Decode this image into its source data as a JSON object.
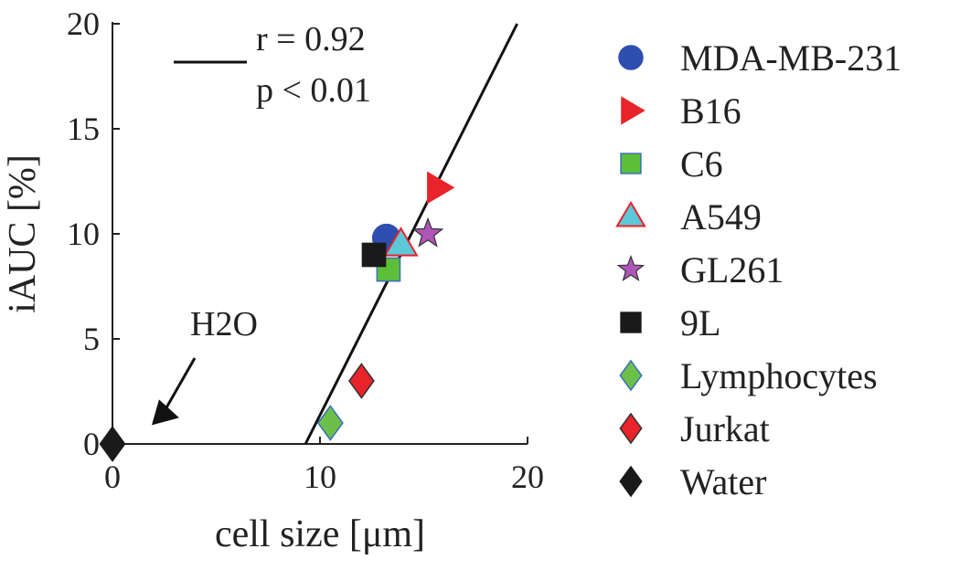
{
  "chart_data": {
    "type": "scatter",
    "xlabel": "cell size [μm]",
    "ylabel": "iAUC [%]",
    "xlim": [
      0,
      20
    ],
    "ylim": [
      0,
      20
    ],
    "x_ticks": [
      "0",
      "10",
      "20"
    ],
    "y_ticks": [
      "0",
      "5",
      "10",
      "15",
      "20"
    ],
    "grid": false,
    "legend_position": "right",
    "series": [
      {
        "name": "MDA-MB-231",
        "marker": "circle",
        "fill": "#2f4fb0",
        "stroke": "#2f4fb0",
        "x": 13.2,
        "y": 9.8
      },
      {
        "name": "B16",
        "marker": "triangle-right",
        "fill": "#e8232a",
        "stroke": "#e8232a",
        "x": 15.7,
        "y": 12.2
      },
      {
        "name": "C6",
        "marker": "square",
        "fill": "#5cbf3a",
        "stroke": "#3a6fb8",
        "x": 13.3,
        "y": 8.3
      },
      {
        "name": "A549",
        "marker": "triangle-up",
        "fill": "#5cc8d8",
        "stroke": "#e8232a",
        "x": 13.9,
        "y": 9.5
      },
      {
        "name": "GL261",
        "marker": "star",
        "fill": "#b055b8",
        "stroke": "#333333",
        "x": 15.2,
        "y": 10.0
      },
      {
        "name": "9L",
        "marker": "square",
        "fill": "#1a1a1a",
        "stroke": "#1a1a1a",
        "x": 12.6,
        "y": 9.0
      },
      {
        "name": "Lymphocytes",
        "marker": "diamond",
        "fill": "#6cc04a",
        "stroke": "#3a6fb8",
        "x": 10.5,
        "y": 1.0
      },
      {
        "name": "Jurkat",
        "marker": "diamond",
        "fill": "#e8232a",
        "stroke": "#333333",
        "x": 12.0,
        "y": 3.0
      },
      {
        "name": "Water",
        "marker": "diamond",
        "fill": "#1a1a1a",
        "stroke": "#1a1a1a",
        "x": 0,
        "y": 0
      }
    ],
    "fit_line": {
      "x": [
        9.3,
        19.5
      ],
      "y": [
        0,
        20
      ],
      "r_label": "r = 0.92",
      "p_label": "p < 0.01"
    },
    "annotation": {
      "text": "H2O",
      "points_to": [
        1.1,
        1.2
      ]
    }
  }
}
